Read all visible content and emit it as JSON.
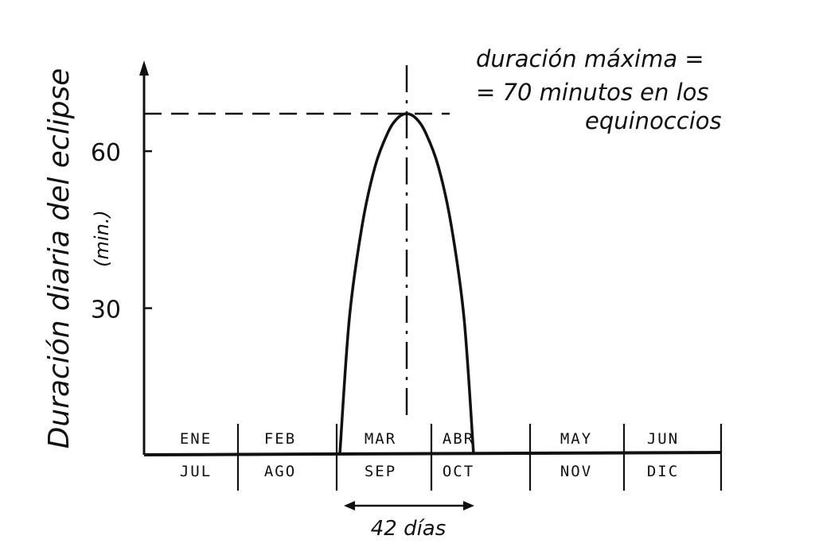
{
  "chart_data": {
    "type": "area",
    "ylabel": "Duración diaria del eclipse",
    "yunit": "(min.)",
    "yticks": [
      30,
      60
    ],
    "ylim": [
      0,
      82
    ],
    "months_top": [
      "ENE",
      "FEB",
      "MAR",
      "ABR",
      "MAY",
      "JUN"
    ],
    "months_bottom": [
      "JUL",
      "AGO",
      "SEP",
      "OCT",
      "NOV",
      "DIC"
    ],
    "series": [
      {
        "x": [
          -21,
          -18,
          -14,
          -10,
          -6,
          -3,
          0,
          3,
          6,
          10,
          14,
          18,
          21
        ],
        "values": [
          0,
          28,
          47,
          59,
          66,
          69,
          70,
          69,
          66,
          59,
          47,
          28,
          0
        ]
      }
    ],
    "peak_value": 70,
    "annotation_lines": [
      "duración máxima =",
      "= 70 minutos en los",
      "equinoccios"
    ],
    "span_label": "42 días",
    "grid": false
  }
}
